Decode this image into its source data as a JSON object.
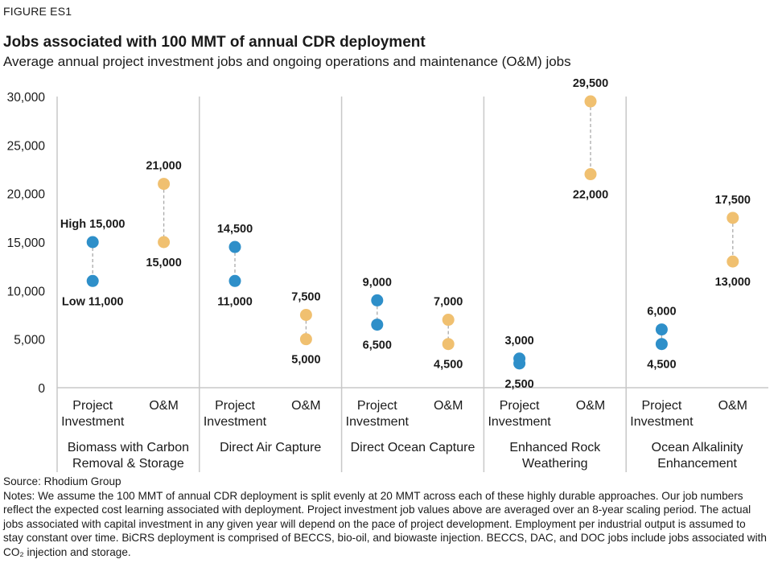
{
  "header": {
    "figure_label": "FIGURE ES1",
    "title": "Jobs associated with 100 MMT of annual CDR deployment",
    "subtitle": "Average annual project investment jobs and ongoing operations and maintenance (O&M) jobs"
  },
  "footer": {
    "source": "Source: Rhodium Group",
    "notes": "Notes: We assume the 100 MMT of annual CDR deployment is split evenly at 20 MMT across each of these highly durable approaches. Our job numbers reflect the expected cost learning associated with deployment. Project investment job values above are averaged over an 8-year scaling period. The actual jobs associated with capital investment in any given year will depend on the pace of project development. Employment per industrial output is assumed to stay constant over time. BiCRS deployment is comprised of BECCS, bio-oil, and biowaste injection. BECCS, DAC, and DOC jobs include jobs associated with CO₂ injection and storage."
  },
  "chart_data": {
    "type": "scatter",
    "ylim": [
      0,
      30000
    ],
    "yticks": [
      0,
      5000,
      10000,
      15000,
      20000,
      25000,
      30000
    ],
    "ytick_labels": [
      "0",
      "5,000",
      "10,000",
      "15,000",
      "20,000",
      "25,000",
      "30,000"
    ],
    "grid": false,
    "colors": {
      "project_investment": "#2e8fc9",
      "om": "#f0c070",
      "connector": "#aaaaaa",
      "axis": "#c8c8c8"
    },
    "groups": [
      {
        "name": "Biomass with Carbon Removal & Storage",
        "name_lines": [
          "Biomass with Carbon",
          "Removal & Storage"
        ],
        "items": [
          {
            "label_lines": [
              "Project",
              "Investment"
            ],
            "series": "project_investment",
            "high": 15000,
            "low": 11000,
            "high_label": "High 15,000",
            "low_label": "Low 11,000"
          },
          {
            "label_lines": [
              "O&M"
            ],
            "series": "om",
            "high": 21000,
            "low": 15000,
            "high_label": "21,000",
            "low_label": "15,000"
          }
        ]
      },
      {
        "name": "Direct Air Capture",
        "name_lines": [
          "Direct Air Capture"
        ],
        "items": [
          {
            "label_lines": [
              "Project",
              "Investment"
            ],
            "series": "project_investment",
            "high": 14500,
            "low": 11000,
            "high_label": "14,500",
            "low_label": "11,000"
          },
          {
            "label_lines": [
              "O&M"
            ],
            "series": "om",
            "high": 7500,
            "low": 5000,
            "high_label": "7,500",
            "low_label": "5,000"
          }
        ]
      },
      {
        "name": "Direct Ocean Capture",
        "name_lines": [
          "Direct Ocean Capture"
        ],
        "items": [
          {
            "label_lines": [
              "Project",
              "Investment"
            ],
            "series": "project_investment",
            "high": 9000,
            "low": 6500,
            "high_label": "9,000",
            "low_label": "6,500"
          },
          {
            "label_lines": [
              "O&M"
            ],
            "series": "om",
            "high": 7000,
            "low": 4500,
            "high_label": "7,000",
            "low_label": "4,500"
          }
        ]
      },
      {
        "name": "Enhanced Rock Weathering",
        "name_lines": [
          "Enhanced Rock",
          "Weathering"
        ],
        "items": [
          {
            "label_lines": [
              "Project",
              "Investment"
            ],
            "series": "project_investment",
            "high": 3000,
            "low": 2500,
            "high_label": "3,000",
            "low_label": "2,500"
          },
          {
            "label_lines": [
              "O&M"
            ],
            "series": "om",
            "high": 29500,
            "low": 22000,
            "high_label": "29,500",
            "low_label": "22,000"
          }
        ]
      },
      {
        "name": "Ocean Alkalinity Enhancement",
        "name_lines": [
          "Ocean Alkalinity",
          "Enhancement"
        ],
        "items": [
          {
            "label_lines": [
              "Project",
              "Investment"
            ],
            "series": "project_investment",
            "high": 6000,
            "low": 4500,
            "high_label": "6,000",
            "low_label": "4,500"
          },
          {
            "label_lines": [
              "O&M"
            ],
            "series": "om",
            "high": 17500,
            "low": 13000,
            "high_label": "17,500",
            "low_label": "13,000"
          }
        ]
      }
    ]
  }
}
